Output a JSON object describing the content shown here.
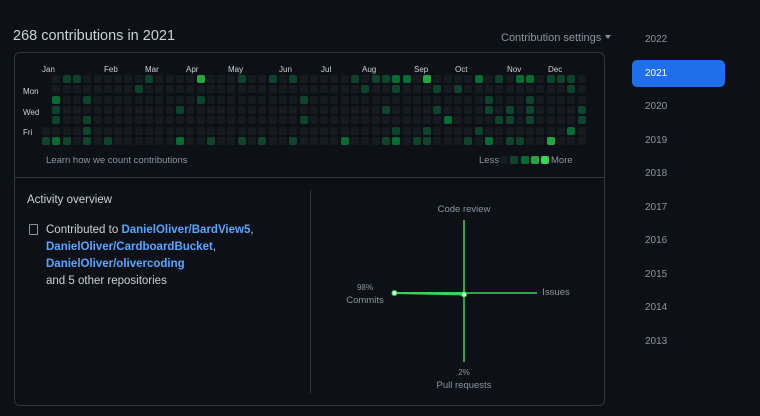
{
  "header": {
    "title": "268 contributions in 2021",
    "settings_label": "Contribution settings"
  },
  "calendar": {
    "months": [
      "Jan",
      "Feb",
      "Mar",
      "Apr",
      "May",
      "Jun",
      "Jul",
      "Aug",
      "Sep",
      "Oct",
      "Nov",
      "Dec"
    ],
    "days": [
      "Mon",
      "Wed",
      "Fri"
    ],
    "level_colors": [
      "#161b22",
      "#0e4429",
      "#006d32",
      "#26a641",
      "#39d353"
    ],
    "rows": [
      "-01100000010000300010010100000101122030000201022011102",
      "-00000000100000000000000000000010010001010000000000102",
      "-20010000000000100000000010000000000000000010001000000",
      "-10000000000010000000000000000000100001000010101000010",
      "-10010000000000000000000010000000000000200001101000010",
      "00001000000000000000000000000000001001000010000000020",
      "121010100000020010010100100002000120110001020110030 0-"
    ],
    "learn_link": "Learn how we count contributions",
    "less": "Less",
    "more": "More"
  },
  "activity": {
    "title": "Activity overview",
    "contributed_prefix": "Contributed to ",
    "repos": [
      "DanielOliver/BardView5",
      "DanielOliver/CardboardBucket",
      "DanielOliver/olivercoding"
    ],
    "other": "and 5 other repositories",
    "radar": {
      "axes": {
        "code_review": "Code review",
        "issues": "Issues",
        "pull_requests": "Pull requests",
        "commits": "Commits"
      },
      "values": {
        "commits": 98,
        "pull_requests": 2,
        "code_review": 0,
        "issues": 0
      },
      "commits_pct": "98%",
      "pull_requests_pct": "2%",
      "color": "#39d353"
    }
  },
  "years": [
    "2022",
    "2021",
    "2020",
    "2019",
    "2018",
    "2017",
    "2016",
    "2015",
    "2014",
    "2013"
  ],
  "active_year": "2021"
}
